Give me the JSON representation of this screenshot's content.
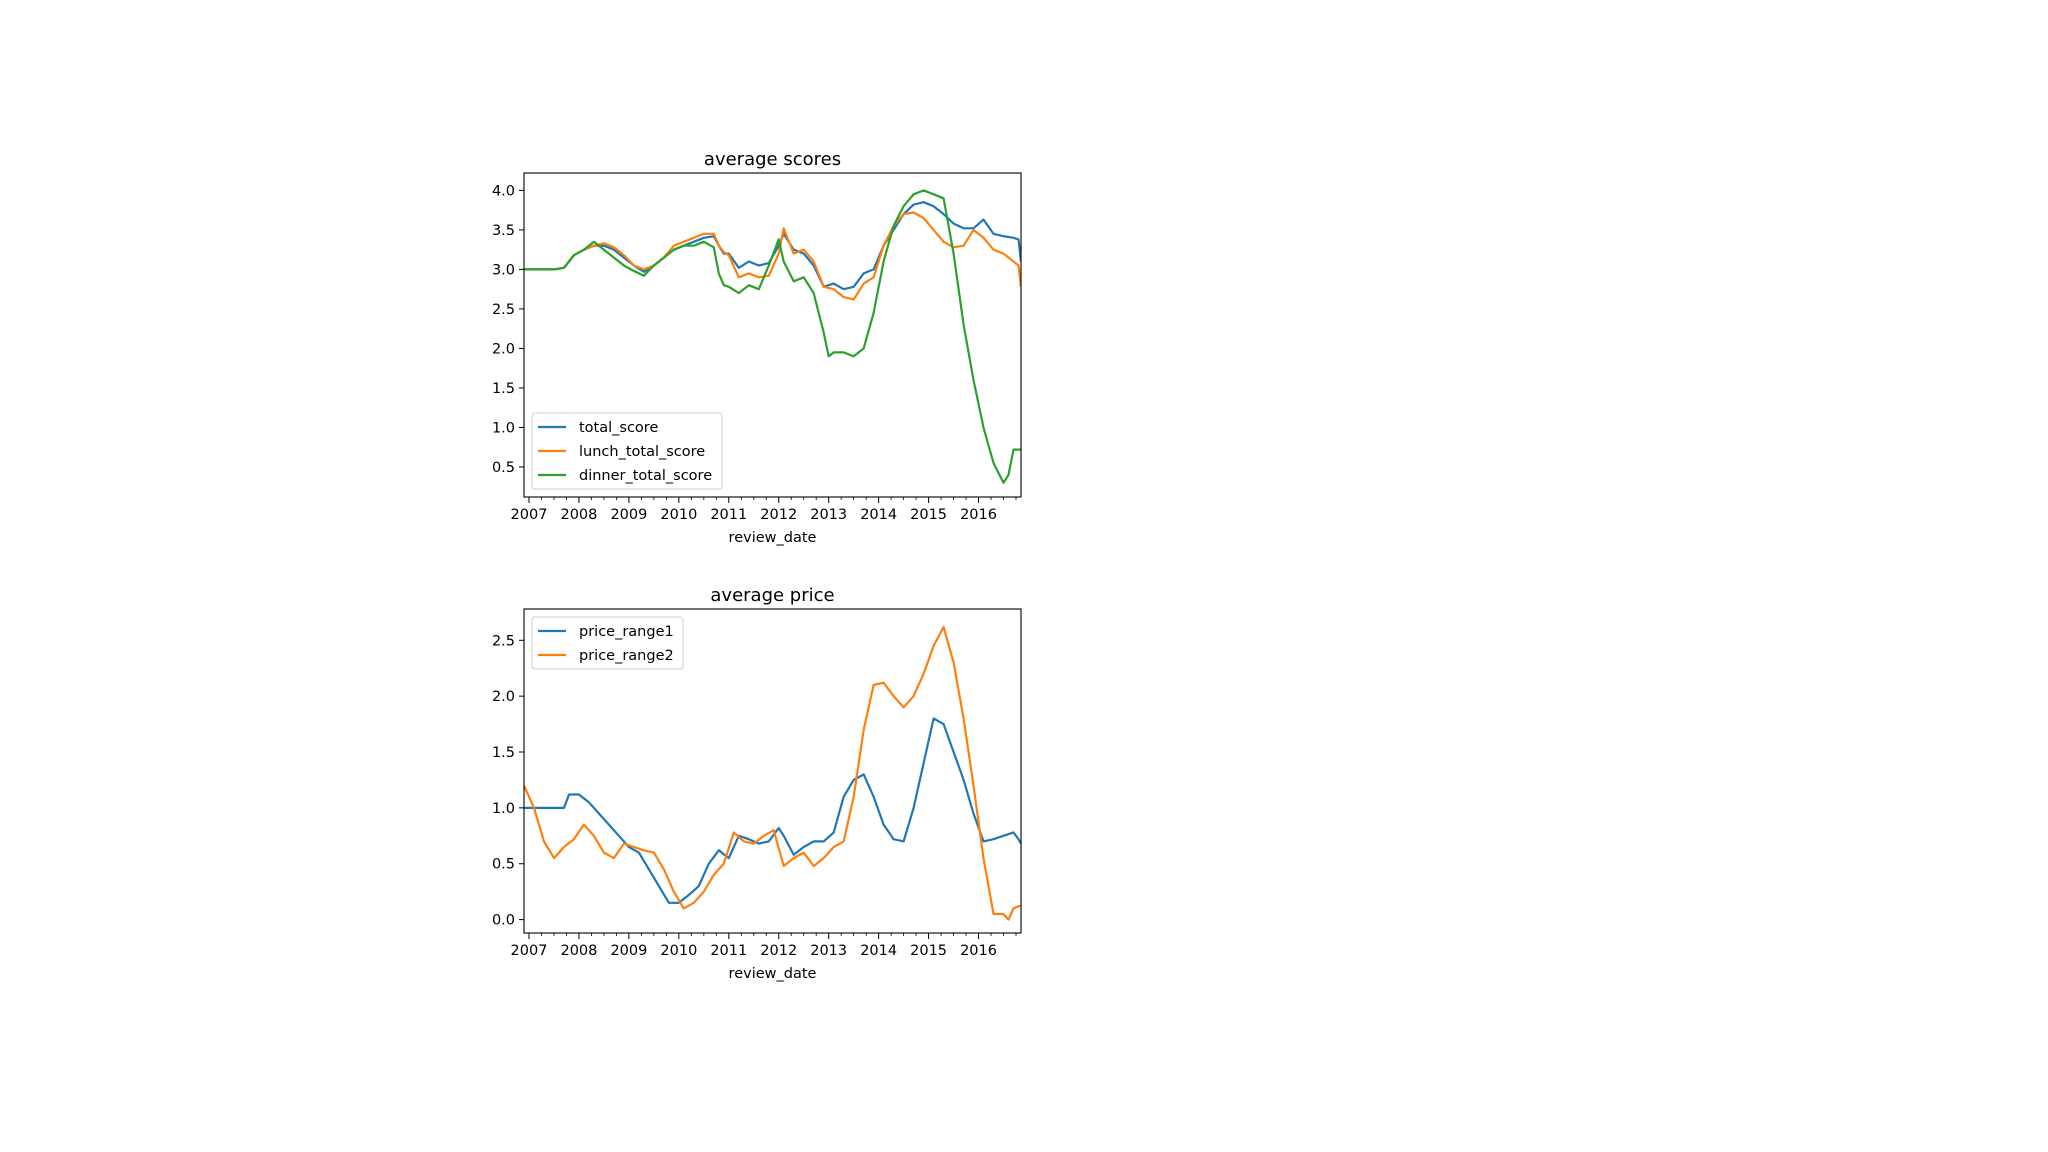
{
  "chart_data": [
    {
      "type": "line",
      "title": "average scores",
      "xlabel": "review_date",
      "ylabel": "",
      "xlim": [
        2006.9,
        2016.85
      ],
      "ylim": [
        0.12,
        4.22
      ],
      "xticks": [
        "2007",
        "2008",
        "2009",
        "2010",
        "2011",
        "2012",
        "2013",
        "2014",
        "2015",
        "2016"
      ],
      "yticks": [
        "0.5",
        "1.0",
        "1.5",
        "2.0",
        "2.5",
        "3.0",
        "3.5",
        "4.0"
      ],
      "grid": false,
      "legend": "lower-left",
      "series": [
        {
          "name": "total_score",
          "color": "#1f77b4",
          "x": [
            2006.9,
            2007.3,
            2007.5,
            2007.7,
            2007.9,
            2008.1,
            2008.3,
            2008.5,
            2008.7,
            2008.9,
            2009.1,
            2009.3,
            2009.5,
            2009.7,
            2009.9,
            2010.1,
            2010.3,
            2010.5,
            2010.7,
            2010.8,
            2010.9,
            2011.0,
            2011.2,
            2011.4,
            2011.6,
            2011.8,
            2012.0,
            2012.1,
            2012.3,
            2012.5,
            2012.7,
            2012.9,
            2013.1,
            2013.3,
            2013.5,
            2013.7,
            2013.9,
            2014.1,
            2014.3,
            2014.5,
            2014.7,
            2014.9,
            2015.1,
            2015.3,
            2015.5,
            2015.7,
            2015.9,
            2016.1,
            2016.3,
            2016.5,
            2016.7,
            2016.8,
            2016.85
          ],
          "y": [
            3.0,
            3.0,
            3.0,
            3.02,
            3.18,
            3.25,
            3.3,
            3.3,
            3.25,
            3.15,
            3.05,
            2.97,
            3.05,
            3.15,
            3.25,
            3.3,
            3.35,
            3.4,
            3.42,
            3.3,
            3.2,
            3.2,
            3.02,
            3.1,
            3.05,
            3.08,
            3.3,
            3.45,
            3.25,
            3.2,
            3.05,
            2.78,
            2.82,
            2.75,
            2.78,
            2.95,
            3.0,
            3.3,
            3.5,
            3.7,
            3.82,
            3.85,
            3.8,
            3.7,
            3.58,
            3.52,
            3.52,
            3.63,
            3.45,
            3.42,
            3.4,
            3.38,
            3.1
          ]
        },
        {
          "name": "lunch_total_score",
          "color": "#ff7f0e",
          "x": [
            2006.9,
            2007.3,
            2007.5,
            2007.7,
            2007.9,
            2008.1,
            2008.3,
            2008.5,
            2008.7,
            2008.9,
            2009.1,
            2009.3,
            2009.5,
            2009.7,
            2009.9,
            2010.1,
            2010.3,
            2010.5,
            2010.7,
            2010.8,
            2010.9,
            2011.0,
            2011.2,
            2011.4,
            2011.6,
            2011.8,
            2012.0,
            2012.1,
            2012.3,
            2012.5,
            2012.7,
            2012.9,
            2013.1,
            2013.3,
            2013.5,
            2013.7,
            2013.9,
            2014.1,
            2014.3,
            2014.5,
            2014.7,
            2014.9,
            2015.1,
            2015.3,
            2015.5,
            2015.7,
            2015.9,
            2016.1,
            2016.3,
            2016.5,
            2016.7,
            2016.8,
            2016.85
          ],
          "y": [
            3.0,
            3.0,
            3.0,
            3.02,
            3.18,
            3.25,
            3.3,
            3.33,
            3.28,
            3.18,
            3.05,
            3.0,
            3.05,
            3.15,
            3.3,
            3.35,
            3.4,
            3.45,
            3.45,
            3.3,
            3.22,
            3.18,
            2.9,
            2.95,
            2.9,
            2.92,
            3.2,
            3.52,
            3.2,
            3.25,
            3.1,
            2.78,
            2.75,
            2.65,
            2.62,
            2.82,
            2.9,
            3.3,
            3.55,
            3.7,
            3.72,
            3.65,
            3.5,
            3.35,
            3.28,
            3.3,
            3.5,
            3.4,
            3.25,
            3.2,
            3.1,
            3.05,
            2.78
          ]
        },
        {
          "name": "dinner_total_score",
          "color": "#2ca02c",
          "x": [
            2006.9,
            2007.3,
            2007.5,
            2007.7,
            2007.9,
            2008.1,
            2008.3,
            2008.5,
            2008.7,
            2008.9,
            2009.1,
            2009.3,
            2009.5,
            2009.7,
            2009.9,
            2010.1,
            2010.3,
            2010.5,
            2010.7,
            2010.8,
            2010.9,
            2011.0,
            2011.2,
            2011.4,
            2011.6,
            2011.8,
            2012.0,
            2012.1,
            2012.3,
            2012.5,
            2012.7,
            2012.9,
            2013.0,
            2013.1,
            2013.3,
            2013.5,
            2013.7,
            2013.9,
            2014.1,
            2014.3,
            2014.5,
            2014.7,
            2014.9,
            2015.1,
            2015.3,
            2015.5,
            2015.7,
            2015.9,
            2016.1,
            2016.3,
            2016.5,
            2016.6,
            2016.7,
            2016.8,
            2016.85
          ],
          "y": [
            3.0,
            3.0,
            3.0,
            3.02,
            3.18,
            3.25,
            3.35,
            3.25,
            3.15,
            3.05,
            2.98,
            2.92,
            3.05,
            3.15,
            3.25,
            3.3,
            3.3,
            3.35,
            3.28,
            2.95,
            2.8,
            2.78,
            2.7,
            2.8,
            2.75,
            3.05,
            3.38,
            3.1,
            2.85,
            2.9,
            2.7,
            2.2,
            1.9,
            1.95,
            1.95,
            1.9,
            2.0,
            2.45,
            3.1,
            3.55,
            3.8,
            3.95,
            4.0,
            3.95,
            3.9,
            3.2,
            2.3,
            1.6,
            1.0,
            0.55,
            0.3,
            0.4,
            0.72,
            0.72,
            0.72
          ]
        }
      ]
    },
    {
      "type": "line",
      "title": "average price",
      "xlabel": "review_date",
      "ylabel": "",
      "xlim": [
        2006.9,
        2016.85
      ],
      "ylim": [
        -0.12,
        2.78
      ],
      "xticks": [
        "2007",
        "2008",
        "2009",
        "2010",
        "2011",
        "2012",
        "2013",
        "2014",
        "2015",
        "2016"
      ],
      "yticks": [
        "0.0",
        "0.5",
        "1.0",
        "1.5",
        "2.0",
        "2.5"
      ],
      "grid": false,
      "legend": "upper-left",
      "series": [
        {
          "name": "price_range1",
          "color": "#1f77b4",
          "x": [
            2006.9,
            2007.3,
            2007.5,
            2007.7,
            2007.8,
            2008.0,
            2008.2,
            2008.4,
            2008.6,
            2008.8,
            2009.0,
            2009.2,
            2009.4,
            2009.6,
            2009.8,
            2010.0,
            2010.2,
            2010.4,
            2010.6,
            2010.8,
            2011.0,
            2011.2,
            2011.4,
            2011.6,
            2011.8,
            2012.0,
            2012.1,
            2012.3,
            2012.5,
            2012.7,
            2012.9,
            2013.1,
            2013.3,
            2013.5,
            2013.7,
            2013.9,
            2014.1,
            2014.3,
            2014.5,
            2014.7,
            2014.9,
            2015.1,
            2015.3,
            2015.5,
            2015.7,
            2015.9,
            2016.1,
            2016.3,
            2016.5,
            2016.7,
            2016.8,
            2016.85
          ],
          "y": [
            1.0,
            1.0,
            1.0,
            1.0,
            1.12,
            1.12,
            1.05,
            0.95,
            0.85,
            0.75,
            0.65,
            0.6,
            0.45,
            0.3,
            0.15,
            0.15,
            0.22,
            0.3,
            0.5,
            0.62,
            0.55,
            0.75,
            0.72,
            0.68,
            0.7,
            0.82,
            0.75,
            0.58,
            0.65,
            0.7,
            0.7,
            0.78,
            1.1,
            1.25,
            1.3,
            1.1,
            0.85,
            0.72,
            0.7,
            1.0,
            1.4,
            1.8,
            1.75,
            1.5,
            1.25,
            0.95,
            0.7,
            0.72,
            0.75,
            0.78,
            0.72,
            0.68
          ]
        },
        {
          "name": "price_range2",
          "color": "#ff7f0e",
          "x": [
            2006.9,
            2007.1,
            2007.3,
            2007.5,
            2007.7,
            2007.9,
            2008.1,
            2008.3,
            2008.5,
            2008.7,
            2008.9,
            2009.1,
            2009.3,
            2009.5,
            2009.7,
            2009.9,
            2010.1,
            2010.3,
            2010.5,
            2010.7,
            2010.9,
            2011.1,
            2011.3,
            2011.5,
            2011.7,
            2011.9,
            2012.1,
            2012.3,
            2012.5,
            2012.7,
            2012.9,
            2013.1,
            2013.3,
            2013.5,
            2013.7,
            2013.9,
            2014.1,
            2014.3,
            2014.5,
            2014.7,
            2014.9,
            2015.1,
            2015.3,
            2015.5,
            2015.7,
            2015.9,
            2016.1,
            2016.3,
            2016.5,
            2016.6,
            2016.7,
            2016.8,
            2016.85
          ],
          "y": [
            1.2,
            1.0,
            0.7,
            0.55,
            0.65,
            0.72,
            0.85,
            0.75,
            0.6,
            0.55,
            0.68,
            0.65,
            0.62,
            0.6,
            0.45,
            0.25,
            0.1,
            0.15,
            0.25,
            0.4,
            0.5,
            0.78,
            0.7,
            0.68,
            0.75,
            0.8,
            0.48,
            0.55,
            0.6,
            0.48,
            0.55,
            0.65,
            0.7,
            1.1,
            1.7,
            2.1,
            2.12,
            2.0,
            1.9,
            2.0,
            2.2,
            2.45,
            2.62,
            2.3,
            1.8,
            1.2,
            0.55,
            0.05,
            0.05,
            0.0,
            0.1,
            0.12,
            0.12
          ]
        }
      ]
    }
  ]
}
